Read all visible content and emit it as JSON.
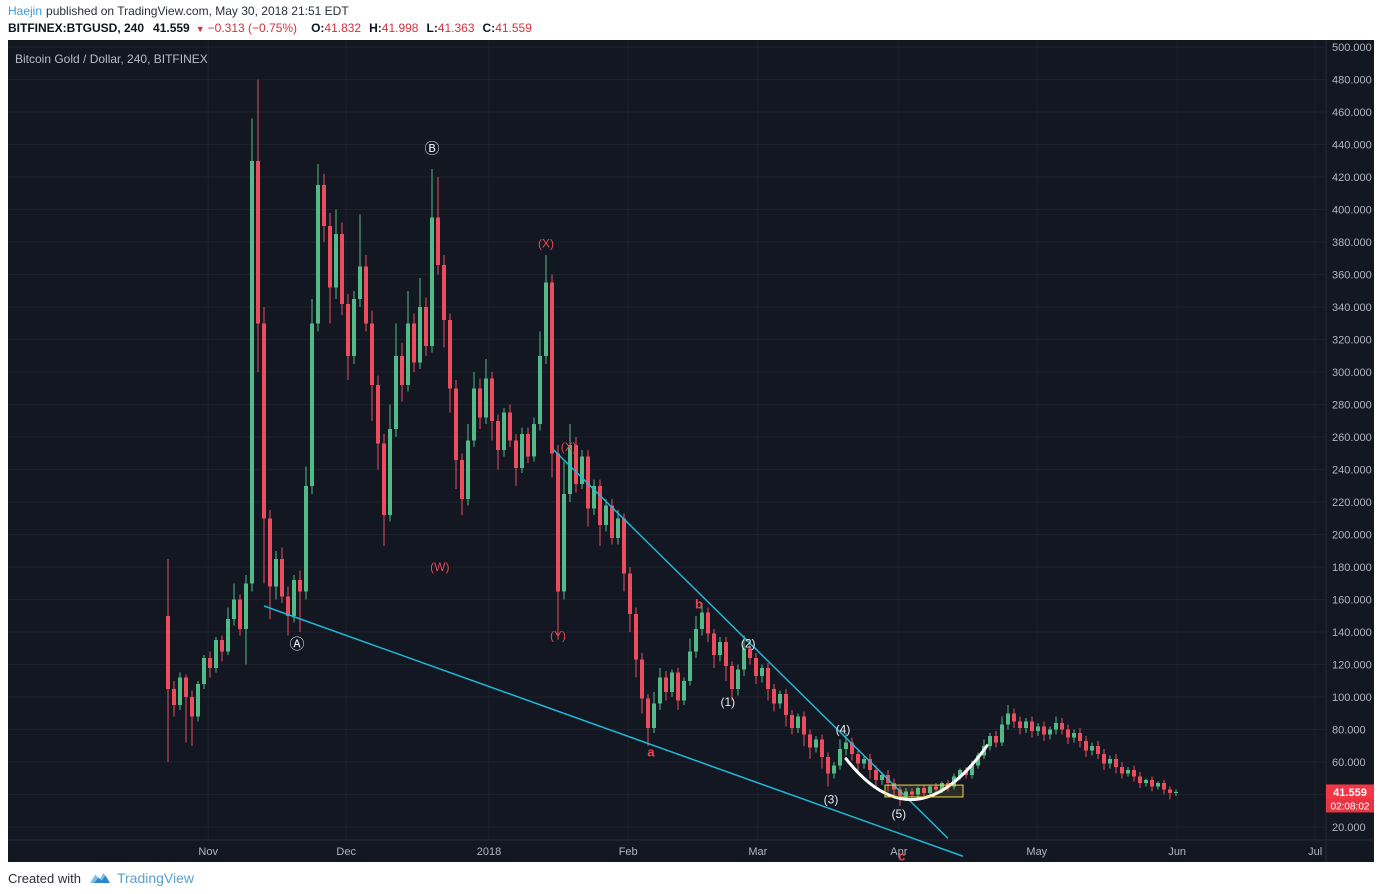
{
  "header": {
    "author": "Haejin",
    "published": "published on TradingView.com, May 30, 2018 21:51 EDT",
    "symbol": "BITFINEX:BTGUSD, 240",
    "price": "41.559",
    "direction_icon": "▼",
    "change": "−0.313 (−0.75%)",
    "ohlc": [
      {
        "label": "O:",
        "value": "41.832"
      },
      {
        "label": "H:",
        "value": "41.998"
      },
      {
        "label": "L:",
        "value": "41.363"
      },
      {
        "label": "C:",
        "value": "41.559"
      }
    ]
  },
  "chart": {
    "title": "Bitcoin Gold / Dollar, 240, BITFINEX"
  },
  "footer": {
    "created_with": "Created with",
    "brand": "TradingView"
  },
  "chart_data": {
    "type": "candlestick",
    "title": "Bitcoin Gold / Dollar, 240, BITFINEX",
    "symbol": "BITFINEX:BTGUSD",
    "interval": "240",
    "last_price": 41.559,
    "last_price_label": "41.559",
    "countdown": "02:08:02",
    "y_axis": {
      "min": 20,
      "max": 500,
      "step": 20,
      "labels": [
        "500.000",
        "480.000",
        "460.000",
        "440.000",
        "420.000",
        "400.000",
        "380.000",
        "360.000",
        "340.000",
        "320.000",
        "300.000",
        "280.000",
        "260.000",
        "240.000",
        "220.000",
        "200.000",
        "180.000",
        "160.000",
        "140.000",
        "120.000",
        "100.000",
        "80.000",
        "60.000",
        "40.000",
        "20.000"
      ]
    },
    "x_axis": {
      "ticks": [
        {
          "label": "Nov",
          "i": 6.7
        },
        {
          "label": "Dec",
          "i": 29.7
        },
        {
          "label": "2018",
          "i": 53.5
        },
        {
          "label": "Feb",
          "i": 76.7
        },
        {
          "label": "Mar",
          "i": 98.3
        },
        {
          "label": "Apr",
          "i": 121.8
        },
        {
          "label": "May",
          "i": 144.8
        },
        {
          "label": "Jun",
          "i": 168.2
        },
        {
          "label": "Jul",
          "i": 191.2
        }
      ]
    },
    "candles": [
      [
        150,
        185,
        60,
        105
      ],
      [
        105,
        110,
        88,
        95
      ],
      [
        95,
        115,
        92,
        112
      ],
      [
        112,
        114,
        72,
        100
      ],
      [
        100,
        104,
        70,
        88
      ],
      [
        88,
        110,
        85,
        108
      ],
      [
        108,
        126,
        105,
        124
      ],
      [
        124,
        128,
        112,
        118
      ],
      [
        118,
        137,
        115,
        135
      ],
      [
        135,
        138,
        122,
        128
      ],
      [
        128,
        155,
        126,
        148
      ],
      [
        148,
        170,
        144,
        160
      ],
      [
        160,
        163,
        138,
        142
      ],
      [
        142,
        175,
        120,
        170
      ],
      [
        170,
        456,
        165,
        430
      ],
      [
        430,
        480,
        300,
        330
      ],
      [
        330,
        340,
        170,
        210
      ],
      [
        210,
        215,
        148,
        168
      ],
      [
        168,
        190,
        160,
        185
      ],
      [
        185,
        192,
        158,
        162
      ],
      [
        162,
        168,
        138,
        150
      ],
      [
        150,
        175,
        146,
        172
      ],
      [
        172,
        178,
        140,
        165
      ],
      [
        165,
        242,
        160,
        230
      ],
      [
        230,
        345,
        225,
        330
      ],
      [
        330,
        428,
        325,
        415
      ],
      [
        415,
        422,
        380,
        390
      ],
      [
        390,
        398,
        330,
        352
      ],
      [
        352,
        400,
        345,
        385
      ],
      [
        385,
        392,
        335,
        342
      ],
      [
        342,
        348,
        295,
        310
      ],
      [
        310,
        350,
        305,
        345
      ],
      [
        345,
        397,
        340,
        365
      ],
      [
        365,
        372,
        325,
        330
      ],
      [
        330,
        338,
        270,
        292
      ],
      [
        292,
        298,
        240,
        256
      ],
      [
        256,
        262,
        193,
        212
      ],
      [
        212,
        280,
        208,
        265
      ],
      [
        265,
        330,
        260,
        310
      ],
      [
        310,
        318,
        282,
        292
      ],
      [
        292,
        350,
        288,
        330
      ],
      [
        330,
        336,
        300,
        306
      ],
      [
        306,
        358,
        302,
        340
      ],
      [
        340,
        346,
        310,
        316
      ],
      [
        316,
        425,
        312,
        395
      ],
      [
        395,
        420,
        360,
        366
      ],
      [
        366,
        372,
        315,
        332
      ],
      [
        332,
        336,
        275,
        290
      ],
      [
        290,
        295,
        228,
        246
      ],
      [
        246,
        250,
        212,
        222
      ],
      [
        222,
        268,
        218,
        258
      ],
      [
        258,
        300,
        254,
        290
      ],
      [
        290,
        296,
        265,
        272
      ],
      [
        272,
        308,
        268,
        296
      ],
      [
        296,
        300,
        258,
        270
      ],
      [
        270,
        274,
        240,
        252
      ],
      [
        252,
        278,
        248,
        275
      ],
      [
        275,
        280,
        254,
        258
      ],
      [
        258,
        262,
        230,
        241
      ],
      [
        241,
        266,
        238,
        262
      ],
      [
        262,
        266,
        244,
        248
      ],
      [
        248,
        272,
        245,
        268
      ],
      [
        268,
        325,
        264,
        310
      ],
      [
        310,
        372,
        305,
        355
      ],
      [
        355,
        360,
        235,
        250
      ],
      [
        250,
        255,
        138,
        165
      ],
      [
        165,
        245,
        160,
        225
      ],
      [
        225,
        268,
        220,
        255
      ],
      [
        255,
        260,
        226,
        231
      ],
      [
        231,
        252,
        228,
        248
      ],
      [
        248,
        252,
        205,
        216
      ],
      [
        216,
        234,
        212,
        230
      ],
      [
        230,
        234,
        193,
        206
      ],
      [
        206,
        222,
        202,
        218
      ],
      [
        218,
        222,
        194,
        198
      ],
      [
        198,
        215,
        194,
        210
      ],
      [
        210,
        213,
        165,
        176
      ],
      [
        176,
        180,
        140,
        151
      ],
      [
        151,
        155,
        112,
        123
      ],
      [
        123,
        127,
        90,
        99
      ],
      [
        99,
        102,
        70,
        81
      ],
      [
        81,
        103,
        78,
        96
      ],
      [
        96,
        118,
        92,
        112
      ],
      [
        112,
        116,
        98,
        103
      ],
      [
        103,
        117,
        100,
        115
      ],
      [
        115,
        118,
        92,
        98
      ],
      [
        98,
        112,
        95,
        110
      ],
      [
        110,
        136,
        107,
        128
      ],
      [
        128,
        150,
        124,
        142
      ],
      [
        142,
        158,
        138,
        152
      ],
      [
        152,
        155,
        134,
        139
      ],
      [
        139,
        142,
        118,
        126
      ],
      [
        126,
        137,
        122,
        134
      ],
      [
        134,
        137,
        110,
        119
      ],
      [
        119,
        122,
        98,
        105
      ],
      [
        105,
        120,
        101,
        117
      ],
      [
        117,
        138,
        113,
        130
      ],
      [
        130,
        133,
        120,
        124
      ],
      [
        124,
        127,
        108,
        113
      ],
      [
        113,
        120,
        109,
        118
      ],
      [
        118,
        121,
        98,
        105
      ],
      [
        105,
        108,
        91,
        96
      ],
      [
        96,
        104,
        93,
        102
      ],
      [
        102,
        105,
        82,
        89
      ],
      [
        89,
        92,
        77,
        81
      ],
      [
        81,
        90,
        78,
        88
      ],
      [
        88,
        91,
        70,
        77
      ],
      [
        77,
        80,
        62,
        69
      ],
      [
        69,
        76,
        66,
        74
      ],
      [
        74,
        77,
        56,
        63
      ],
      [
        63,
        66,
        45,
        53
      ],
      [
        53,
        60,
        50,
        58
      ],
      [
        58,
        74,
        55,
        68
      ],
      [
        68,
        78,
        64,
        72
      ],
      [
        72,
        75,
        61,
        65
      ],
      [
        65,
        68,
        55,
        59
      ],
      [
        59,
        64,
        56,
        62
      ],
      [
        62,
        65,
        50,
        55
      ],
      [
        55,
        58,
        44,
        49
      ],
      [
        49,
        54,
        46,
        52
      ],
      [
        52,
        55,
        42,
        47
      ],
      [
        47,
        50,
        38,
        43
      ],
      [
        43,
        45,
        33,
        39
      ],
      [
        39,
        44,
        36,
        42
      ],
      [
        42,
        44,
        37,
        40
      ],
      [
        40,
        45,
        38,
        44
      ],
      [
        44,
        46,
        39,
        41
      ],
      [
        41,
        46,
        39,
        45
      ],
      [
        45,
        47,
        40,
        43
      ],
      [
        43,
        48,
        41,
        47
      ],
      [
        47,
        49,
        42,
        45
      ],
      [
        45,
        53,
        43,
        51
      ],
      [
        51,
        56,
        49,
        55
      ],
      [
        55,
        57,
        50,
        52
      ],
      [
        52,
        61,
        50,
        58
      ],
      [
        58,
        66,
        56,
        64
      ],
      [
        64,
        74,
        62,
        70
      ],
      [
        70,
        78,
        67,
        76
      ],
      [
        76,
        79,
        69,
        72
      ],
      [
        72,
        88,
        70,
        83
      ],
      [
        83,
        95,
        80,
        90
      ],
      [
        90,
        93,
        81,
        85
      ],
      [
        85,
        88,
        77,
        81
      ],
      [
        81,
        87,
        78,
        85
      ],
      [
        85,
        88,
        75,
        79
      ],
      [
        79,
        84,
        76,
        82
      ],
      [
        82,
        85,
        73,
        77
      ],
      [
        77,
        82,
        74,
        80
      ],
      [
        80,
        88,
        77,
        84
      ],
      [
        84,
        87,
        77,
        80
      ],
      [
        80,
        83,
        71,
        75
      ],
      [
        75,
        80,
        72,
        78
      ],
      [
        78,
        81,
        69,
        73
      ],
      [
        73,
        76,
        63,
        67
      ],
      [
        67,
        72,
        64,
        70
      ],
      [
        70,
        73,
        62,
        65
      ],
      [
        65,
        68,
        55,
        59
      ],
      [
        59,
        64,
        56,
        62
      ],
      [
        62,
        65,
        53,
        57
      ],
      [
        57,
        60,
        50,
        53
      ],
      [
        53,
        57,
        51,
        55
      ],
      [
        55,
        58,
        48,
        51
      ],
      [
        51,
        54,
        44,
        47
      ],
      [
        47,
        50,
        45,
        49
      ],
      [
        49,
        51,
        42,
        45
      ],
      [
        45,
        48,
        43,
        47
      ],
      [
        47,
        49,
        40,
        43
      ],
      [
        43,
        45,
        37,
        41
      ],
      [
        41,
        43,
        39,
        41.56
      ]
    ],
    "annotations": [
      {
        "text": "Ⓐ",
        "i": 21.5,
        "price": 132,
        "color": "white",
        "size": 15,
        "bold": false
      },
      {
        "text": "Ⓑ",
        "i": 44.0,
        "price": 437,
        "color": "white",
        "size": 15,
        "bold": false
      },
      {
        "text": "(X)",
        "i": 63.0,
        "price": 379,
        "color": "red",
        "size": 12,
        "bold": false
      },
      {
        "text": "(X)",
        "i": 66.8,
        "price": 254,
        "color": "red",
        "size": 12,
        "bold": false
      },
      {
        "text": "(W)",
        "i": 45.3,
        "price": 180,
        "color": "red",
        "size": 12,
        "bold": false
      },
      {
        "text": "(Y)",
        "i": 65.0,
        "price": 138,
        "color": "red",
        "size": 12,
        "bold": false
      },
      {
        "text": "a",
        "i": 80.5,
        "price": 66,
        "color": "red",
        "size": 13,
        "bold": true
      },
      {
        "text": "b",
        "i": 88.5,
        "price": 157,
        "color": "red",
        "size": 13,
        "bold": true
      },
      {
        "text": "c",
        "i": 122.3,
        "price": 2,
        "color": "red",
        "size": 13,
        "bold": true
      },
      {
        "text": "(1)",
        "i": 93.3,
        "price": 97,
        "color": "white",
        "size": 12,
        "bold": false
      },
      {
        "text": "(2)",
        "i": 96.7,
        "price": 133,
        "color": "white",
        "size": 12,
        "bold": false
      },
      {
        "text": "(3)",
        "i": 110.5,
        "price": 37,
        "color": "white",
        "size": 12,
        "bold": false
      },
      {
        "text": "(4)",
        "i": 112.5,
        "price": 80,
        "color": "white",
        "size": 12,
        "bold": false
      },
      {
        "text": "(5)",
        "i": 121.8,
        "price": 28,
        "color": "white",
        "size": 12,
        "bold": false
      }
    ],
    "trendlines": [
      {
        "from": [
          16,
          156
        ],
        "to": [
          132.5,
          2
        ]
      },
      {
        "from": [
          64.3,
          252
        ],
        "to": [
          130,
          13
        ]
      }
    ],
    "arc": {
      "from": [
        113,
        62
      ],
      "control": [
        124.5,
        8
      ],
      "to": [
        136.5,
        70
      ]
    },
    "rect": {
      "i1": 119.5,
      "price1": 45.8,
      "i2": 132.5,
      "price2": 38.5
    },
    "colors": {
      "up": "#53b987",
      "down": "#eb4d5c",
      "trendline": "#1fb9d7",
      "arc": "#ffffff",
      "rect": "#ecd94c",
      "annotation_red": "#e8474f",
      "annotation_white": "#e8eaf0",
      "price_label_bg": "#f23645",
      "background": "#131722",
      "axis_text": "#b2b5be"
    }
  }
}
